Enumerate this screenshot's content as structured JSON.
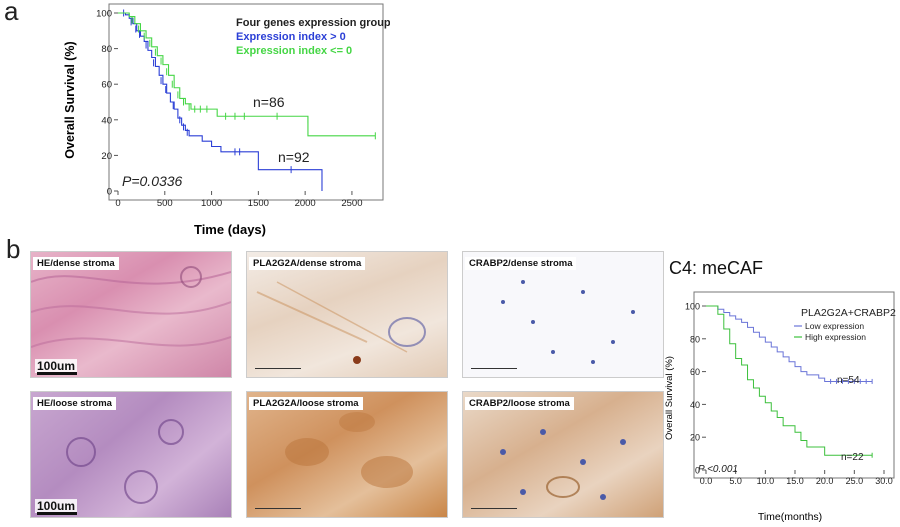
{
  "panel_a": {
    "letter": "a"
  },
  "panel_b": {
    "letter": "b"
  },
  "tiles": {
    "he_dense": "HE/dense stroma",
    "pla_dense": "PLA2G2A/dense stroma",
    "crab_dense": "CRABP2/dense stroma",
    "he_loose": "HE/loose stroma",
    "pla_loose": "PLA2G2A/loose stroma",
    "crab_loose": "CRABP2/loose stroma",
    "scale_top": "100um",
    "scale_bottom": "100um"
  },
  "c4_title": "C4: meCAF",
  "chart_data": [
    {
      "type": "line",
      "subtype": "kaplan-meier",
      "xlabel": "Time (days)",
      "ylabel": "Overall Survival  (%)",
      "xlim": [
        0,
        2800
      ],
      "ylim": [
        0,
        100
      ],
      "xticks": [
        0,
        500,
        1000,
        1500,
        2000,
        2500
      ],
      "yticks": [
        0,
        20,
        40,
        60,
        80,
        100
      ],
      "legend_title": "Four genes expression group:",
      "legend_position": "top-right",
      "series": [
        {
          "name": "Expression index > 0",
          "color": "#2b3fd6",
          "annotation": "n=92",
          "steps": [
            [
              0,
              100
            ],
            [
              80,
              99
            ],
            [
              120,
              97
            ],
            [
              160,
              94
            ],
            [
              200,
              90
            ],
            [
              240,
              87
            ],
            [
              280,
              84
            ],
            [
              320,
              79
            ],
            [
              360,
              75
            ],
            [
              400,
              70
            ],
            [
              440,
              65
            ],
            [
              480,
              60
            ],
            [
              520,
              55
            ],
            [
              560,
              50
            ],
            [
              600,
              46
            ],
            [
              640,
              41
            ],
            [
              680,
              37
            ],
            [
              720,
              34
            ],
            [
              760,
              31
            ],
            [
              900,
              28
            ],
            [
              1000,
              25
            ],
            [
              1100,
              22
            ],
            [
              1350,
              22
            ],
            [
              1500,
              12
            ],
            [
              2100,
              12
            ],
            [
              2180,
              0
            ]
          ],
          "censor": [
            [
              60,
              100
            ],
            [
              140,
              95
            ],
            [
              190,
              91
            ],
            [
              230,
              88
            ],
            [
              300,
              82
            ],
            [
              380,
              72
            ],
            [
              460,
              62
            ],
            [
              510,
              57
            ],
            [
              590,
              48
            ],
            [
              660,
              40
            ],
            [
              700,
              36
            ],
            [
              740,
              33
            ],
            [
              1250,
              22
            ],
            [
              1300,
              22
            ],
            [
              1850,
              12
            ]
          ]
        },
        {
          "name": "Expression index <= 0",
          "color": "#45d645",
          "annotation": "n=86",
          "steps": [
            [
              0,
              100
            ],
            [
              120,
              98
            ],
            [
              180,
              94
            ],
            [
              240,
              90
            ],
            [
              300,
              86
            ],
            [
              360,
              81
            ],
            [
              420,
              76
            ],
            [
              480,
              71
            ],
            [
              540,
              65
            ],
            [
              600,
              58
            ],
            [
              660,
              52
            ],
            [
              720,
              49
            ],
            [
              780,
              46
            ],
            [
              960,
              46
            ],
            [
              1060,
              42
            ],
            [
              1900,
              42
            ],
            [
              2030,
              31
            ],
            [
              2750,
              31
            ]
          ],
          "censor": [
            [
              150,
              96
            ],
            [
              220,
              91
            ],
            [
              280,
              87
            ],
            [
              340,
              83
            ],
            [
              400,
              78
            ],
            [
              460,
              73
            ],
            [
              520,
              67
            ],
            [
              580,
              60
            ],
            [
              640,
              54
            ],
            [
              700,
              50
            ],
            [
              760,
              47
            ],
            [
              820,
              46
            ],
            [
              880,
              46
            ],
            [
              950,
              46
            ],
            [
              1150,
              42
            ],
            [
              1250,
              42
            ],
            [
              1350,
              42
            ],
            [
              1700,
              42
            ],
            [
              2030,
              40
            ],
            [
              2750,
              31
            ]
          ]
        }
      ],
      "annotation_text": "P=0.0336"
    },
    {
      "type": "line",
      "subtype": "kaplan-meier",
      "xlabel": "Time(months)",
      "ylabel": "Overall Survival (%)",
      "xlim": [
        0,
        30
      ],
      "ylim": [
        0,
        100
      ],
      "xticks": [
        "0.0",
        "5.0",
        "10.0",
        "15.0",
        "20.0",
        "25.0",
        "30.0"
      ],
      "yticks": [
        0,
        20,
        40,
        60,
        80,
        100
      ],
      "legend_title": "PLA2G2A+CRABP2",
      "legend_position": "top-right",
      "series": [
        {
          "name": "Low expression",
          "color": "#6a74d8",
          "annotation": "n=54",
          "steps": [
            [
              0,
              100
            ],
            [
              2.0,
              98
            ],
            [
              3.0,
              96
            ],
            [
              4.0,
              94
            ],
            [
              5.0,
              92
            ],
            [
              6.0,
              90
            ],
            [
              7.0,
              87
            ],
            [
              8.0,
              84
            ],
            [
              9.0,
              81
            ],
            [
              10.0,
              78
            ],
            [
              11.0,
              75
            ],
            [
              12.0,
              72
            ],
            [
              13.0,
              69
            ],
            [
              14.0,
              66
            ],
            [
              15.0,
              63
            ],
            [
              16.0,
              60
            ],
            [
              17.0,
              58
            ],
            [
              19.0,
              56
            ],
            [
              20.0,
              54
            ],
            [
              28.0,
              54
            ]
          ],
          "censor": [
            [
              21.0,
              54
            ],
            [
              22.0,
              54
            ],
            [
              23.0,
              54
            ],
            [
              24.0,
              54
            ],
            [
              25.0,
              54
            ],
            [
              26.0,
              54
            ],
            [
              27.0,
              54
            ],
            [
              28.0,
              54
            ]
          ]
        },
        {
          "name": "High expression",
          "color": "#3cc03c",
          "annotation": "n=22",
          "steps": [
            [
              0,
              100
            ],
            [
              2.0,
              95
            ],
            [
              3.0,
              86
            ],
            [
              4.0,
              77
            ],
            [
              5.0,
              68
            ],
            [
              6.0,
              64
            ],
            [
              7.0,
              55
            ],
            [
              8.0,
              50
            ],
            [
              9.0,
              45
            ],
            [
              10.0,
              41
            ],
            [
              11.0,
              36
            ],
            [
              12.0,
              32
            ],
            [
              13.0,
              27
            ],
            [
              15.0,
              23
            ],
            [
              16.0,
              18
            ],
            [
              17.0,
              14
            ],
            [
              20.0,
              9
            ],
            [
              28.0,
              9
            ]
          ],
          "censor": [
            [
              28.0,
              9
            ]
          ]
        }
      ],
      "annotation_text": "P  <0.001"
    }
  ]
}
